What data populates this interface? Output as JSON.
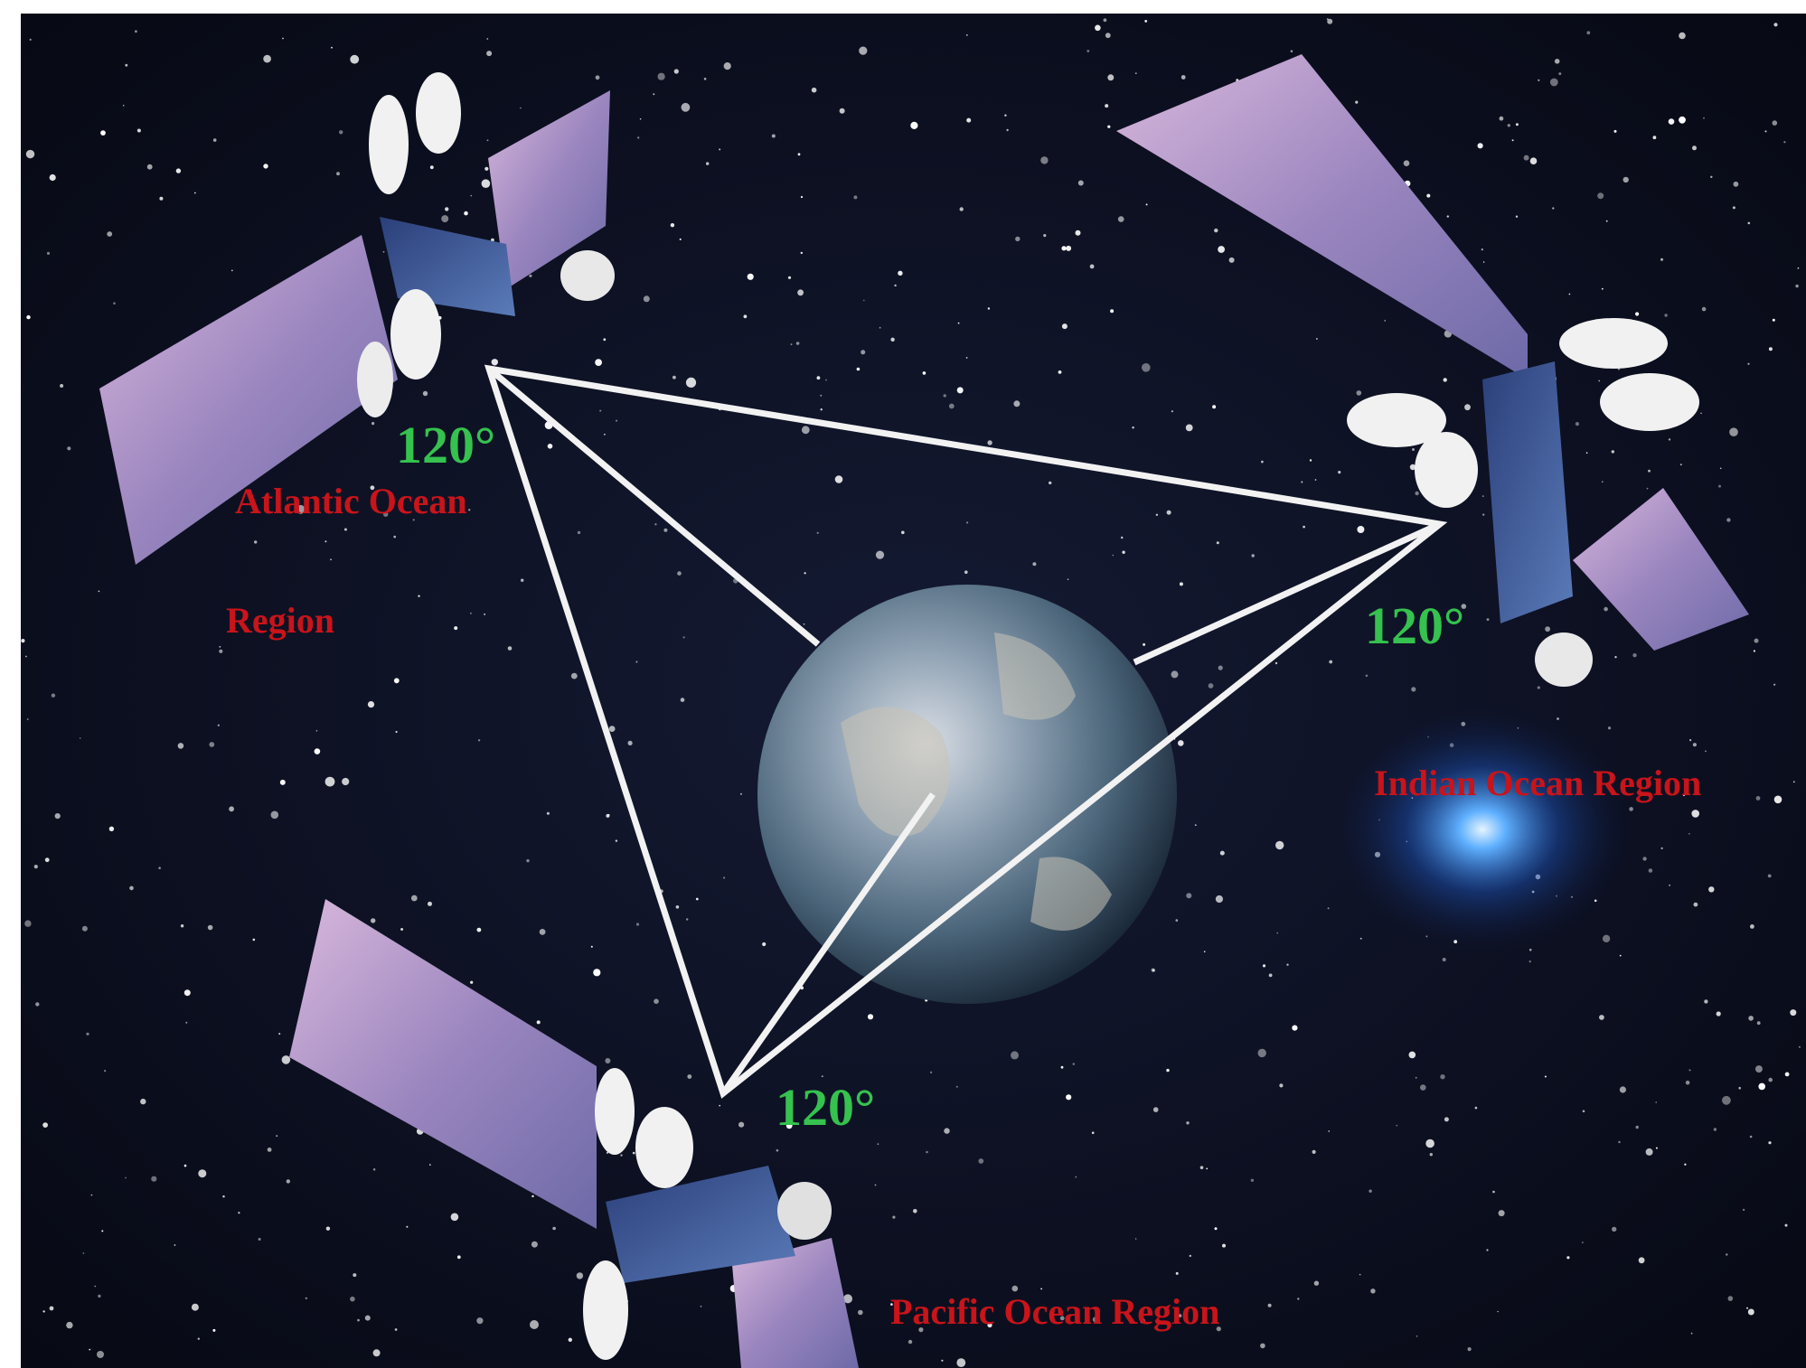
{
  "satellites": [
    {
      "angle": "120°",
      "region_lines": [
        "Atlantic Ocean",
        "Region"
      ]
    },
    {
      "angle": "120°",
      "region_lines": [
        "Indian Ocean Region"
      ]
    },
    {
      "angle": "120°",
      "region_lines": [
        "Pacific Ocean Region"
      ]
    }
  ]
}
